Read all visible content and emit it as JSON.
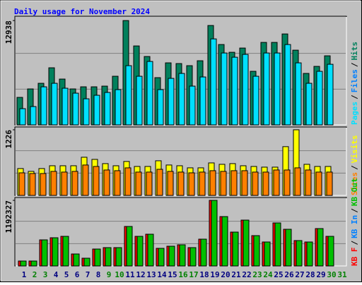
{
  "chart_data": [
    {
      "type": "bar",
      "title": "Daily usage for November 2024",
      "ylim": [
        0,
        13300
      ],
      "yticks": [
        12938
      ],
      "legend_separator": "/",
      "series": [
        {
          "name": "Pages",
          "color": "#00e0ff",
          "values": [
            2010,
            2272,
            4720,
            5157,
            4545,
            3933,
            3234,
            3671,
            4020,
            4370,
            7342,
            6031,
            7866,
            4370,
            5768,
            6380,
            4807,
            5943,
            10663,
            8915,
            8390,
            8740,
            6031,
            8915,
            8915,
            9964,
            7691,
            5157,
            6642,
            7516,
            null
          ]
        },
        {
          "name": "Files",
          "color": "#0080ff",
          "values": [
            null,
            null,
            null,
            null,
            null,
            null,
            null,
            null,
            null,
            null,
            null,
            null,
            null,
            null,
            null,
            null,
            null,
            null,
            null,
            null,
            null,
            null,
            null,
            null,
            null,
            null,
            null,
            null,
            null,
            null,
            null
          ]
        },
        {
          "name": "Hits",
          "color": "#00805c",
          "values": [
            3409,
            4458,
            5158,
            7081,
            5682,
            4458,
            4721,
            4721,
            4808,
            6032,
            12938,
            9791,
            8480,
            5857,
            7693,
            7605,
            7343,
            7955,
            12326,
            9966,
            9004,
            9529,
            6644,
            10228,
            10228,
            11277,
            9266,
            6382,
            7256,
            8567,
            null
          ]
        }
      ]
    },
    {
      "type": "bar",
      "ylim": [
        0,
        1252
      ],
      "yticks": [
        1226
      ],
      "legend_separator": "/",
      "series": [
        {
          "name": "Sites",
          "color": "#ff8000",
          "values": [
            422,
            409,
            409,
            449,
            436,
            449,
            568,
            541,
            475,
            462,
            515,
            436,
            436,
            488,
            449,
            436,
            422,
            436,
            462,
            449,
            462,
            462,
            436,
            436,
            475,
            475,
            515,
            475,
            436,
            436,
            null
          ]
        },
        {
          "name": "Visits",
          "color": "#ffff00",
          "values": [
            502,
            449,
            502,
            554,
            554,
            554,
            713,
            673,
            594,
            554,
            634,
            541,
            541,
            647,
            568,
            554,
            515,
            515,
            607,
            581,
            594,
            554,
            541,
            528,
            528,
            911,
            1226,
            581,
            541,
            541,
            null
          ]
        }
      ]
    },
    {
      "type": "bar",
      "ylim": [
        0,
        1218000
      ],
      "yticks": [
        1192327
      ],
      "legend_separator": "/",
      "categories": [
        "1",
        "2",
        "3",
        "4",
        "5",
        "6",
        "7",
        "8",
        "9",
        "10",
        "11",
        "12",
        "13",
        "14",
        "15",
        "16",
        "17",
        "18",
        "19",
        "20",
        "21",
        "22",
        "23",
        "24",
        "25",
        "26",
        "27",
        "28",
        "29",
        "30",
        "31"
      ],
      "category_colors": [
        "#000080",
        "#008000",
        "#008000",
        "#000080",
        "#000080",
        "#000080",
        "#000080",
        "#000080",
        "#008000",
        "#008000",
        "#000080",
        "#000080",
        "#000080",
        "#000080",
        "#000080",
        "#008000",
        "#008000",
        "#000080",
        "#000080",
        "#000080",
        "#000080",
        "#000080",
        "#008000",
        "#008000",
        "#000080",
        "#000080",
        "#000080",
        "#000080",
        "#000080",
        "#008000",
        "#008000"
      ],
      "series": [
        {
          "name": "KB F",
          "color": "#ff0000",
          "values": [
            89747,
            89747,
            474377,
            512840,
            538482,
            217957,
            141031,
            307704,
            333346,
            333346,
            717976,
            538482,
            576945,
            320525,
            358988,
            384630,
            333346,
            487198,
            1192327,
            897470,
            615408,
            833365,
            551303,
            435914,
            782081,
            666692,
            461556,
            435914,
            679513,
            538482,
            null
          ]
        },
        {
          "name": "KB In",
          "color": "#0080ff",
          "values": [
            null,
            null,
            null,
            null,
            null,
            null,
            null,
            null,
            null,
            null,
            null,
            null,
            null,
            null,
            null,
            null,
            null,
            null,
            null,
            null,
            null,
            null,
            null,
            null,
            null,
            null,
            null,
            null,
            null,
            null,
            null
          ]
        },
        {
          "name": "KB Out",
          "color": "#00c000",
          "values": [
            89747,
            89747,
            474377,
            512840,
            538482,
            217957,
            141031,
            307704,
            333346,
            333346,
            717976,
            538482,
            576945,
            320525,
            358988,
            384630,
            333346,
            487198,
            1192327,
            897470,
            615408,
            833365,
            551303,
            435914,
            782081,
            666692,
            461556,
            435914,
            679513,
            538482,
            null
          ]
        }
      ]
    }
  ]
}
